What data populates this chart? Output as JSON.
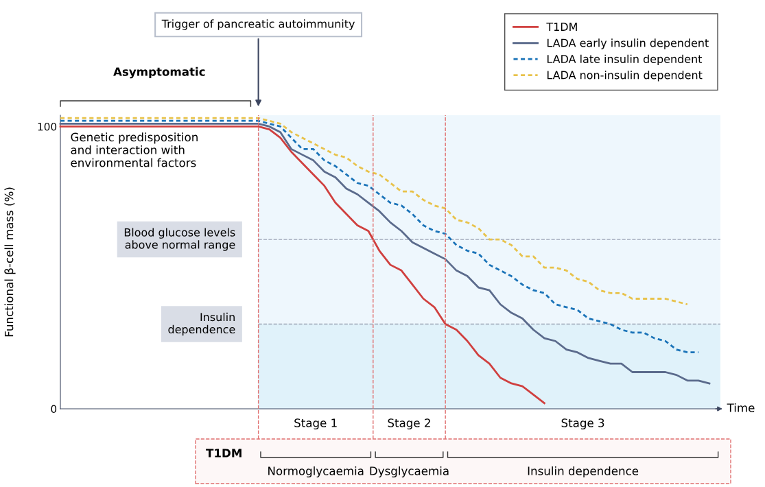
{
  "chart_data": {
    "type": "line",
    "xlabel": "Time",
    "ylabel": "Functional β-cell mass (%)",
    "categories": [
      null,
      null,
      null,
      null,
      null,
      null,
      null,
      null,
      null,
      null,
      null,
      null,
      null,
      null,
      null,
      null,
      null,
      null,
      null,
      null,
      null,
      null,
      null,
      null,
      null,
      null,
      null,
      null,
      null,
      null,
      null,
      null,
      null,
      null,
      null,
      null,
      null,
      null,
      null,
      null,
      null,
      null,
      null,
      null,
      null,
      null,
      null,
      null,
      null,
      null,
      null,
      null,
      null,
      null,
      null,
      null,
      null,
      null,
      null,
      null,
      null
    ],
    "series": [
      {
        "name": "T1DM",
        "color": "#d0403f",
        "line_style": "solid",
        "values": [
          100,
          100,
          100,
          100,
          100,
          100,
          100,
          100,
          100,
          100,
          100,
          100,
          100,
          100,
          100,
          100,
          100,
          100,
          100,
          99,
          96,
          91,
          87,
          83,
          79,
          73,
          69,
          65,
          63,
          56,
          51,
          49,
          44,
          39,
          36,
          30,
          28,
          24,
          19,
          16,
          11,
          9,
          8,
          5,
          2,
          null,
          null,
          null,
          null,
          null,
          null,
          null,
          null,
          null,
          null,
          null,
          null,
          null,
          null,
          null,
          null
        ]
      },
      {
        "name": "LADA early insulin dependent",
        "color": "#5b6b8c",
        "line_style": "solid",
        "values": [
          101,
          101,
          101,
          101,
          101,
          101,
          101,
          101,
          101,
          101,
          101,
          101,
          101,
          101,
          101,
          101,
          101,
          101,
          101,
          100,
          98,
          92,
          90,
          88,
          84,
          82,
          78,
          76,
          73,
          70,
          66,
          63,
          59,
          57,
          55,
          53,
          49,
          47,
          43,
          42,
          37,
          34,
          32,
          28,
          25,
          24,
          21,
          20,
          18,
          17,
          16,
          16,
          13,
          13,
          13,
          13,
          12,
          10,
          10,
          9,
          null
        ]
      },
      {
        "name": "LADA late insulin dependent",
        "color": "#1a73b8",
        "line_style": "dashed",
        "values": [
          102,
          102,
          102,
          102,
          102,
          102,
          102,
          102,
          102,
          102,
          102,
          102,
          102,
          102,
          102,
          102,
          102,
          102,
          102,
          101,
          100,
          96,
          92,
          92,
          88,
          86,
          83,
          80,
          79,
          76,
          73,
          72,
          69,
          65,
          63,
          62,
          58,
          56,
          55,
          51,
          49,
          47,
          44,
          42,
          41,
          37,
          36,
          35,
          32,
          31,
          30,
          28,
          27,
          27,
          25,
          24,
          21,
          20,
          20,
          null,
          null
        ]
      },
      {
        "name": "LADA non-insulin dependent",
        "color": "#e8c24a",
        "line_style": "dashed",
        "values": [
          103,
          103,
          103,
          103,
          103,
          103,
          103,
          103,
          103,
          103,
          103,
          103,
          103,
          103,
          103,
          103,
          103,
          103,
          103,
          102,
          101,
          98,
          96,
          94,
          92,
          90,
          89,
          86,
          84,
          83,
          80,
          77,
          77,
          74,
          72,
          71,
          67,
          66,
          64,
          60,
          60,
          58,
          54,
          54,
          50,
          50,
          49,
          46,
          45,
          42,
          41,
          41,
          39,
          39,
          39,
          39,
          38,
          37,
          null,
          null,
          null
        ]
      }
    ],
    "ylim": [
      0,
      104
    ],
    "yticks": [
      0,
      100
    ],
    "tick_labels": "y",
    "legend": "top right",
    "ref_lines": [
      {
        "axis": "y",
        "value": 60,
        "label": "Blood glucose levels above normal range",
        "color": "#9aa3b5",
        "line_style": "dashed"
      },
      {
        "axis": "y",
        "value": 30,
        "label": "Insulin dependence",
        "color": "#9aa3b5",
        "line_style": "dashed"
      }
    ],
    "bands": [
      {
        "axis": "y",
        "from": 0,
        "to": 30,
        "color": "#e0f2fa"
      }
    ],
    "annotations": [
      "Trigger of pancreatic autoimmunity",
      "Asymptomatic",
      "Genetic predisposition and interaction with environmental factors",
      "Stage 1",
      "Stage 2",
      "Stage 3",
      "T1DM",
      "Normoglycaemia",
      "Dysglycaemia",
      "Insulin dependence"
    ]
  }
}
